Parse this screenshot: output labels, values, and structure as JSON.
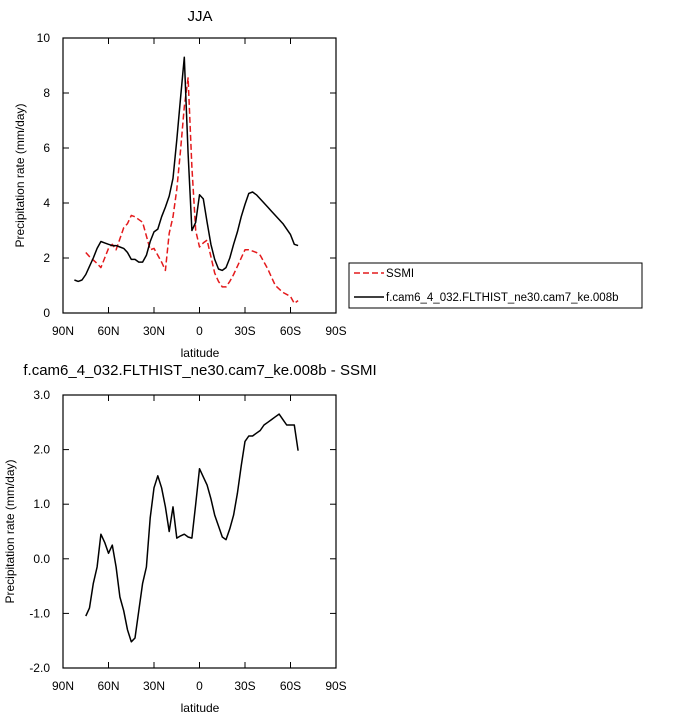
{
  "chart_data": [
    {
      "type": "line",
      "title": "JJA",
      "xlabel": "latitude",
      "ylabel": "Precipitation rate (mm/day)",
      "xlim": [
        90,
        -90
      ],
      "ylim": [
        0,
        10
      ],
      "xticks": [
        {
          "value": 90,
          "label": "90N"
        },
        {
          "value": 60,
          "label": "60N"
        },
        {
          "value": 30,
          "label": "30N"
        },
        {
          "value": 0,
          "label": "0"
        },
        {
          "value": -30,
          "label": "30S"
        },
        {
          "value": -60,
          "label": "60S"
        },
        {
          "value": -90,
          "label": "90S"
        }
      ],
      "yticks": [
        {
          "value": 0,
          "label": "0"
        },
        {
          "value": 2,
          "label": "2"
        },
        {
          "value": 4,
          "label": "4"
        },
        {
          "value": 6,
          "label": "6"
        },
        {
          "value": 8,
          "label": "8"
        },
        {
          "value": 10,
          "label": "10"
        }
      ],
      "legend_position": "right",
      "series": [
        {
          "name": "SSMI",
          "color": "#e41a1c",
          "dash": true,
          "x": [
            75,
            72.5,
            67.5,
            65,
            62.5,
            60,
            57.5,
            55,
            52.5,
            50,
            47.5,
            45,
            42.5,
            37.5,
            35,
            32.5,
            30,
            25,
            22.5,
            20,
            17.5,
            15,
            12.5,
            10,
            7.5,
            5,
            2.5,
            0,
            -2.5,
            -5,
            -7.5,
            -10,
            -12.5,
            -15,
            -17.5,
            -20,
            -22.5,
            -25,
            -27.5,
            -30,
            -32.5,
            -35,
            -37.5,
            -40,
            -42.5,
            -45,
            -50,
            -55,
            -60,
            -62.5,
            -65
          ],
          "values": [
            2.2,
            2.05,
            1.8,
            1.65,
            2.0,
            2.35,
            2.5,
            2.3,
            2.7,
            3.1,
            3.25,
            3.55,
            3.5,
            3.3,
            2.8,
            2.3,
            2.35,
            1.85,
            1.55,
            2.9,
            3.5,
            4.5,
            5.9,
            7.5,
            8.55,
            5.3,
            3.0,
            2.4,
            2.55,
            2.65,
            2.05,
            1.45,
            1.15,
            0.95,
            0.95,
            1.15,
            1.4,
            1.7,
            2.0,
            2.3,
            2.3,
            2.25,
            2.2,
            2.1,
            1.85,
            1.6,
            1.0,
            0.75,
            0.6,
            0.35,
            0.45
          ]
        },
        {
          "name": "f.cam6_4_032.FLTHIST_ne30.cam7_ke.008b",
          "color": "#000000",
          "dash": false,
          "x": [
            82.5,
            80,
            77.5,
            75,
            72.5,
            70,
            67.5,
            65,
            62.5,
            60,
            57.5,
            55,
            52.5,
            50,
            47.5,
            45,
            42.5,
            40,
            37.5,
            35,
            32.5,
            30,
            27.5,
            25,
            22.5,
            20,
            17.5,
            15,
            12.5,
            10,
            7.5,
            5,
            2.5,
            0,
            -2.5,
            -5,
            -7.5,
            -10,
            -12.5,
            -15,
            -17.5,
            -20,
            -22.5,
            -25,
            -27.5,
            -30,
            -32.5,
            -35,
            -37.5,
            -40,
            -42.5,
            -45,
            -47.5,
            -50,
            -52.5,
            -55,
            -57.5,
            -60,
            -62.5,
            -65
          ],
          "values": [
            1.2,
            1.15,
            1.2,
            1.4,
            1.7,
            2.0,
            2.35,
            2.6,
            2.55,
            2.5,
            2.45,
            2.45,
            2.4,
            2.35,
            2.2,
            1.95,
            1.95,
            1.85,
            1.85,
            2.1,
            2.6,
            2.95,
            3.05,
            3.5,
            3.85,
            4.25,
            4.9,
            6.3,
            7.8,
            9.3,
            5.8,
            3.0,
            3.3,
            4.3,
            4.15,
            3.3,
            2.5,
            1.95,
            1.6,
            1.55,
            1.65,
            2.0,
            2.5,
            2.95,
            3.5,
            3.95,
            4.35,
            4.4,
            4.3,
            4.15,
            4.0,
            3.85,
            3.7,
            3.55,
            3.4,
            3.25,
            3.05,
            2.85,
            2.5,
            2.45
          ]
        }
      ]
    },
    {
      "type": "line",
      "title": "f.cam6_4_032.FLTHIST_ne30.cam7_ke.008b - SSMI",
      "xlabel": "latitude",
      "ylabel": "Precipitation rate (mm/day)",
      "xlim": [
        90,
        -90
      ],
      "ylim": [
        -2,
        3
      ],
      "xticks": [
        {
          "value": 90,
          "label": "90N"
        },
        {
          "value": 60,
          "label": "60N"
        },
        {
          "value": 30,
          "label": "30N"
        },
        {
          "value": 0,
          "label": "0"
        },
        {
          "value": -30,
          "label": "30S"
        },
        {
          "value": -60,
          "label": "60S"
        },
        {
          "value": -90,
          "label": "90S"
        }
      ],
      "yticks": [
        {
          "value": -2,
          "label": "-2.0"
        },
        {
          "value": -1,
          "label": "-1.0"
        },
        {
          "value": 0,
          "label": "0.0"
        },
        {
          "value": 1,
          "label": "1.0"
        },
        {
          "value": 2,
          "label": "2.0"
        },
        {
          "value": 3,
          "label": "3.0"
        }
      ],
      "series": [
        {
          "color": "#000000",
          "dash": false,
          "x": [
            75,
            72.5,
            70,
            67.5,
            65,
            62.5,
            60,
            57.5,
            55,
            52.5,
            50,
            47.5,
            45,
            42.5,
            40,
            37.5,
            35,
            32.5,
            30,
            27.5,
            25,
            22.5,
            20,
            17.5,
            15,
            12.5,
            10,
            7.5,
            5,
            2.5,
            0,
            -2.5,
            -5,
            -7.5,
            -10,
            -12.5,
            -15,
            -17.5,
            -20,
            -22.5,
            -25,
            -27.5,
            -30,
            -32.5,
            -35,
            -37.5,
            -40,
            -42.5,
            -45,
            -47.5,
            -50,
            -52.5,
            -55,
            -57.5,
            -60,
            -62.5,
            -65
          ],
          "values": [
            -1.05,
            -0.9,
            -0.45,
            -0.15,
            0.45,
            0.3,
            0.1,
            0.25,
            -0.15,
            -0.7,
            -0.95,
            -1.3,
            -1.52,
            -1.45,
            -0.95,
            -0.45,
            -0.15,
            0.75,
            1.3,
            1.52,
            1.3,
            0.95,
            0.5,
            0.95,
            0.38,
            0.42,
            0.45,
            0.4,
            0.38,
            1.0,
            1.65,
            1.5,
            1.35,
            1.1,
            0.8,
            0.6,
            0.4,
            0.35,
            0.55,
            0.8,
            1.2,
            1.7,
            2.15,
            2.25,
            2.25,
            2.3,
            2.35,
            2.45,
            2.5,
            2.55,
            2.6,
            2.65,
            2.55,
            2.45,
            2.45,
            2.45,
            1.98
          ]
        }
      ]
    }
  ]
}
